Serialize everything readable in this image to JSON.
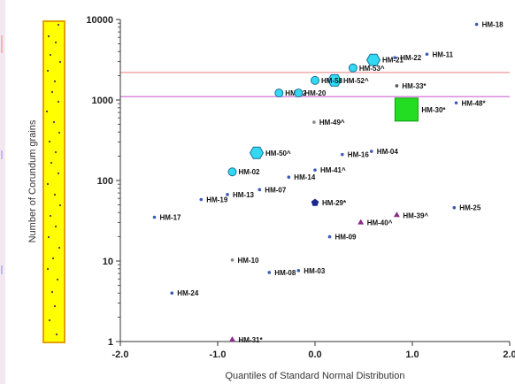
{
  "chart_data": {
    "type": "scatter",
    "xlabel": "Quantiles of Standard Normal Distribution",
    "ylabel": "Number of Corundum grains",
    "xlim": [
      -2.0,
      2.0
    ],
    "ylim": [
      1,
      10000
    ],
    "y_scale": "log",
    "x_ticks": [
      -2.0,
      -1.0,
      0.0,
      1.0,
      2.0
    ],
    "x_tick_labels": [
      "-2.0",
      "-1.0",
      "0.0",
      "1.0",
      "2.0"
    ],
    "y_ticks": [
      1,
      10,
      100,
      1000,
      10000
    ],
    "y_tick_labels": [
      "1",
      "10",
      "100",
      "1000",
      "10000"
    ],
    "grid": false,
    "threshold_lines": [
      {
        "y": 2200,
        "color": "#f0a8a8"
      },
      {
        "y": 1100,
        "color": "#d98be0"
      }
    ],
    "points": [
      {
        "label": "HM-18",
        "x": 1.66,
        "y": 8700,
        "marker": "dot",
        "color": "#3b5bb8"
      },
      {
        "label": "HM-11",
        "x": 1.15,
        "y": 3700,
        "marker": "dot",
        "color": "#3b5bb8"
      },
      {
        "label": "HM-22",
        "x": 0.82,
        "y": 3350,
        "marker": "dot",
        "color": "#3b5bb8"
      },
      {
        "label": "HM-21",
        "x": 0.6,
        "y": 3150,
        "marker": "hexagon",
        "color": "#33d9f0"
      },
      {
        "label": "HM-53^",
        "x": 0.39,
        "y": 2500,
        "marker": "circle",
        "color": "#33d9f0"
      },
      {
        "label": "HM-52^",
        "x": 0.2,
        "y": 1750,
        "marker": "hexagon",
        "color": "#33d9f0"
      },
      {
        "label": "HM-58",
        "x": 0.0,
        "y": 1750,
        "marker": "circle",
        "color": "#33d9f0"
      },
      {
        "label": "HM-33*",
        "x": 0.84,
        "y": 1500,
        "marker": "dot",
        "color": "#555555"
      },
      {
        "label": "HM-12",
        "x": -0.37,
        "y": 1220,
        "marker": "circle",
        "color": "#33d9f0"
      },
      {
        "label": "HM-20",
        "x": -0.17,
        "y": 1220,
        "marker": "circle",
        "color": "#33d9f0"
      },
      {
        "label": "HM-48*",
        "x": 1.45,
        "y": 920,
        "marker": "dot",
        "color": "#3b5bb8"
      },
      {
        "label": "HM-30*",
        "x": 0.94,
        "y": 760,
        "marker": "square",
        "color": "#22dd22"
      },
      {
        "label": "HM-49^",
        "x": -0.01,
        "y": 530,
        "marker": "dot",
        "color": "#888888"
      },
      {
        "label": "HM-50^",
        "x": -0.6,
        "y": 220,
        "marker": "hexagon",
        "color": "#33d9f0"
      },
      {
        "label": "HM-16",
        "x": 0.28,
        "y": 210,
        "marker": "dot",
        "color": "#3b5bb8"
      },
      {
        "label": "HM-04",
        "x": 0.58,
        "y": 230,
        "marker": "dot",
        "color": "#3b5bb8"
      },
      {
        "label": "HM-41^",
        "x": 0.0,
        "y": 135,
        "marker": "dot",
        "color": "#3b5bb8"
      },
      {
        "label": "HM-02",
        "x": -0.85,
        "y": 128,
        "marker": "circle",
        "color": "#33d9f0"
      },
      {
        "label": "HM-14",
        "x": -0.27,
        "y": 110,
        "marker": "dot",
        "color": "#3b5bb8"
      },
      {
        "label": "HM-07",
        "x": -0.57,
        "y": 77,
        "marker": "dot",
        "color": "#3b5bb8"
      },
      {
        "label": "HM-13",
        "x": -0.9,
        "y": 67,
        "marker": "dot",
        "color": "#3b5bb8"
      },
      {
        "label": "HM-19",
        "x": -1.17,
        "y": 58,
        "marker": "dot",
        "color": "#3b5bb8"
      },
      {
        "label": "HM-29*",
        "x": 0.0,
        "y": 53,
        "marker": "pentagon",
        "color": "#1a2a8c"
      },
      {
        "label": "HM-25",
        "x": 1.43,
        "y": 46,
        "marker": "dot",
        "color": "#3b5bb8"
      },
      {
        "label": "HM-39^",
        "x": 0.84,
        "y": 37,
        "marker": "triangle",
        "color": "#8a2a8a"
      },
      {
        "label": "HM-17",
        "x": -1.65,
        "y": 35,
        "marker": "dot",
        "color": "#3b5bb8"
      },
      {
        "label": "HM-40^",
        "x": 0.47,
        "y": 30,
        "marker": "triangle",
        "color": "#8a2a8a"
      },
      {
        "label": "HM-09",
        "x": 0.15,
        "y": 20,
        "marker": "dot",
        "color": "#3b5bb8"
      },
      {
        "label": "HM-10",
        "x": -0.85,
        "y": 10.3,
        "marker": "dot",
        "color": "#888888"
      },
      {
        "label": "HM-08",
        "x": -0.47,
        "y": 7.2,
        "marker": "dot",
        "color": "#3b5bb8"
      },
      {
        "label": "HM-03",
        "x": -0.17,
        "y": 7.6,
        "marker": "dot",
        "color": "#3b5bb8"
      },
      {
        "label": "HM-24",
        "x": -1.47,
        "y": 4.0,
        "marker": "dot",
        "color": "#3b5bb8"
      },
      {
        "label": "HM-31*",
        "x": -0.85,
        "y": 1.05,
        "marker": "triangle",
        "color": "#8a2a8a"
      }
    ]
  }
}
